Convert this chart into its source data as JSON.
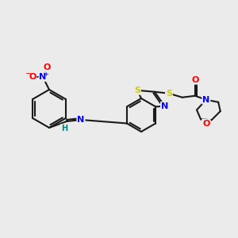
{
  "background_color": "#ebebeb",
  "bond_color": "#1a1a1a",
  "atom_colors": {
    "N": "#0000ff",
    "O": "#ff0000",
    "S": "#cccc00",
    "H": "#008080",
    "C": "#1a1a1a"
  },
  "figsize": [
    3.0,
    3.0
  ],
  "dpi": 100
}
